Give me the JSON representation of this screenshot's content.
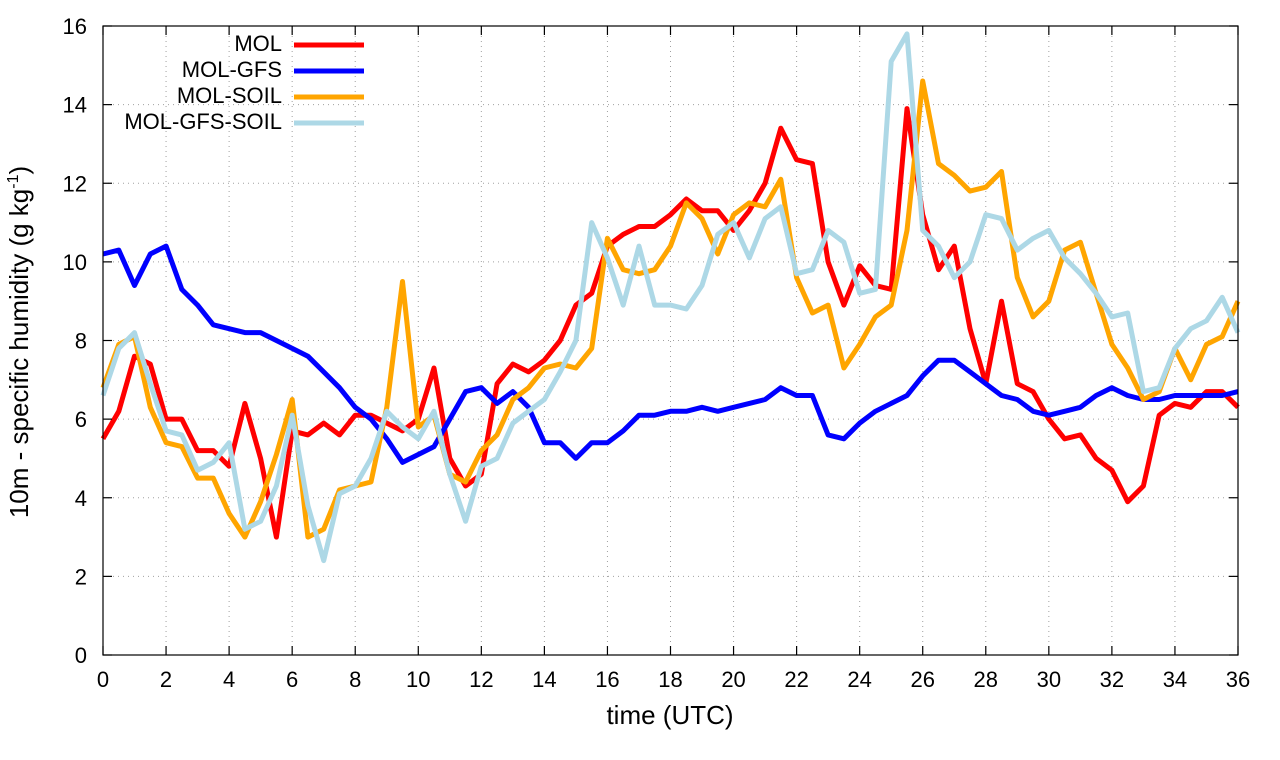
{
  "chart_data": {
    "type": "line",
    "title": "",
    "xlabel": "time (UTC)",
    "ylabel": "10m - specific humidity (g kg",
    "ylabel_sup": "-1",
    "ylabel_close": ")",
    "xlim": [
      0,
      36
    ],
    "ylim": [
      0,
      16
    ],
    "xticks": [
      0,
      2,
      4,
      6,
      8,
      10,
      12,
      14,
      16,
      18,
      20,
      22,
      24,
      26,
      28,
      30,
      32,
      34,
      36
    ],
    "yticks": [
      0,
      2,
      4,
      6,
      8,
      10,
      12,
      14,
      16
    ],
    "grid": true,
    "legend_position": "top-left",
    "x": [
      0,
      0.5,
      1,
      1.5,
      2,
      2.5,
      3,
      3.5,
      4,
      4.5,
      5,
      5.5,
      6,
      6.5,
      7,
      7.5,
      8,
      8.5,
      9,
      9.5,
      10,
      10.5,
      11,
      11.5,
      12,
      12.5,
      13,
      13.5,
      14,
      14.5,
      15,
      15.5,
      16,
      16.5,
      17,
      17.5,
      18,
      18.5,
      19,
      19.5,
      20,
      20.5,
      21,
      21.5,
      22,
      22.5,
      23,
      23.5,
      24,
      24.5,
      25,
      25.5,
      26,
      26.5,
      27,
      27.5,
      28,
      28.5,
      29,
      29.5,
      30,
      30.5,
      31,
      31.5,
      32,
      32.5,
      33,
      33.5,
      34,
      34.5,
      35,
      35.5,
      36
    ],
    "series": [
      {
        "name": "MOL",
        "color": "#ff0000",
        "values": [
          5.5,
          6.2,
          7.6,
          7.4,
          6.0,
          6.0,
          5.2,
          5.2,
          4.8,
          6.4,
          5.0,
          3.0,
          5.7,
          5.6,
          5.9,
          5.6,
          6.1,
          6.1,
          5.9,
          5.7,
          6.0,
          7.3,
          5.0,
          4.3,
          4.6,
          6.9,
          7.4,
          7.2,
          7.5,
          8.0,
          8.9,
          9.2,
          10.4,
          10.7,
          10.9,
          10.9,
          11.2,
          11.6,
          11.3,
          11.3,
          10.8,
          11.3,
          12.0,
          13.4,
          12.6,
          12.5,
          10.0,
          8.9,
          9.9,
          9.4,
          9.3,
          13.9,
          11.2,
          9.8,
          10.4,
          8.3,
          6.9,
          9.0,
          6.9,
          6.7,
          6.0,
          5.5,
          5.6,
          5.0,
          4.7,
          3.9,
          4.3,
          6.1,
          6.4,
          6.3,
          6.7,
          6.7,
          6.3
        ]
      },
      {
        "name": "MOL-GFS",
        "color": "#0000ff",
        "values": [
          10.2,
          10.3,
          9.4,
          10.2,
          10.4,
          9.3,
          8.9,
          8.4,
          8.3,
          8.2,
          8.2,
          8.0,
          7.8,
          7.6,
          7.2,
          6.8,
          6.3,
          6.0,
          5.5,
          4.9,
          5.1,
          5.3,
          6.0,
          6.7,
          6.8,
          6.4,
          6.7,
          6.3,
          5.4,
          5.4,
          5.0,
          5.4,
          5.4,
          5.7,
          6.1,
          6.1,
          6.2,
          6.2,
          6.3,
          6.2,
          6.3,
          6.4,
          6.5,
          6.8,
          6.6,
          6.6,
          5.6,
          5.5,
          5.9,
          6.2,
          6.4,
          6.6,
          7.1,
          7.5,
          7.5,
          7.2,
          6.9,
          6.6,
          6.5,
          6.2,
          6.1,
          6.2,
          6.3,
          6.6,
          6.8,
          6.6,
          6.5,
          6.5,
          6.6,
          6.6,
          6.6,
          6.6,
          6.7
        ]
      },
      {
        "name": "MOL-SOIL",
        "color": "#ffa500",
        "values": [
          6.8,
          7.9,
          8.1,
          6.3,
          5.4,
          5.3,
          4.5,
          4.5,
          3.6,
          3.0,
          3.9,
          5.1,
          6.5,
          3.0,
          3.2,
          4.2,
          4.3,
          4.4,
          6.3,
          9.5,
          5.8,
          6.1,
          4.6,
          4.4,
          5.2,
          5.6,
          6.5,
          6.8,
          7.3,
          7.4,
          7.3,
          7.8,
          10.6,
          9.8,
          9.7,
          9.8,
          10.4,
          11.5,
          11.1,
          10.2,
          11.2,
          11.5,
          11.4,
          12.1,
          9.6,
          8.7,
          8.9,
          7.3,
          7.9,
          8.6,
          8.9,
          10.8,
          14.6,
          12.5,
          12.2,
          11.8,
          11.9,
          12.3,
          9.6,
          8.6,
          9.0,
          10.3,
          10.5,
          9.2,
          7.9,
          7.3,
          6.5,
          6.7,
          7.8,
          7.0,
          7.9,
          8.1,
          9.0
        ]
      },
      {
        "name": "MOL-GFS-SOIL",
        "color": "#add8e6",
        "values": [
          6.6,
          7.8,
          8.2,
          6.9,
          5.7,
          5.6,
          4.7,
          4.9,
          5.4,
          3.2,
          3.4,
          4.3,
          6.1,
          3.8,
          2.4,
          4.1,
          4.3,
          5.0,
          6.2,
          5.8,
          5.5,
          6.2,
          4.6,
          3.4,
          4.8,
          5.0,
          5.9,
          6.2,
          6.5,
          7.2,
          8.0,
          11.0,
          10.1,
          8.9,
          10.4,
          8.9,
          8.9,
          8.8,
          9.4,
          10.7,
          11.0,
          10.1,
          11.1,
          11.4,
          9.7,
          9.8,
          10.8,
          10.5,
          9.2,
          9.3,
          15.1,
          15.8,
          10.8,
          10.4,
          9.6,
          10.0,
          11.2,
          11.1,
          10.3,
          10.6,
          10.8,
          10.1,
          9.7,
          9.2,
          8.6,
          8.7,
          6.7,
          6.8,
          7.8,
          8.3,
          8.5,
          9.1,
          8.2
        ]
      }
    ]
  }
}
